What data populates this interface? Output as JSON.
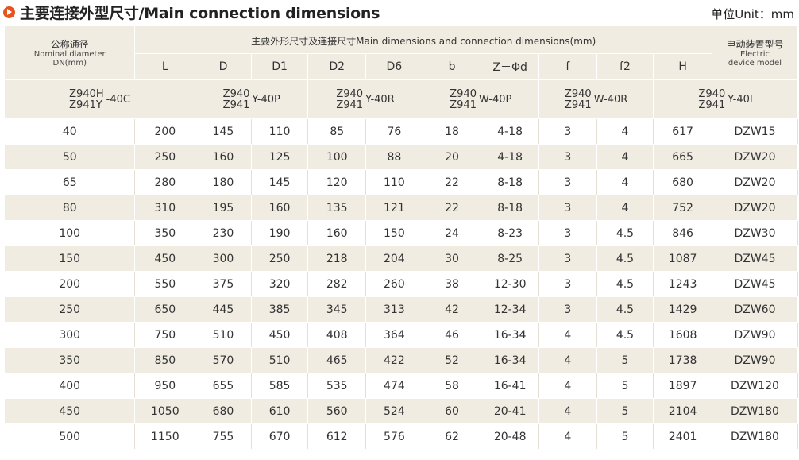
{
  "header": {
    "title": "主要连接外型尺寸/Main connection dimensions",
    "unit": "单位Unit：mm"
  },
  "table": {
    "nominal_zh": "公称通径",
    "nominal_en1": "Nominal diameter",
    "nominal_en2": "DN(mm)",
    "main_dims": "主要外形尺寸及连接尺寸Main dimensions and connection dimensions(mm)",
    "electric_zh": "电动装置型号",
    "electric_en1": "Electric",
    "electric_en2": "device model",
    "columns": [
      "L",
      "D",
      "D1",
      "D2",
      "D6",
      "b",
      "Z－Φd",
      "f",
      "f2",
      "H"
    ],
    "models": [
      {
        "top": "Z940H",
        "bottom": "Z941Y",
        "suffix": "-40C"
      },
      {
        "top": "Z940",
        "bottom": "Z941",
        "suffix": "Y-40P"
      },
      {
        "top": "Z940",
        "bottom": "Z941",
        "suffix": "Y-40R"
      },
      {
        "top": "Z940",
        "bottom": "Z941",
        "suffix": "W-40P"
      },
      {
        "top": "Z940",
        "bottom": "Z941",
        "suffix": "W-40R"
      },
      {
        "top": "Z940",
        "bottom": "Z941",
        "suffix": "Y-40I"
      }
    ],
    "rows": [
      [
        "40",
        "200",
        "145",
        "110",
        "85",
        "76",
        "18",
        "4-18",
        "3",
        "4",
        "617",
        "DZW15"
      ],
      [
        "50",
        "250",
        "160",
        "125",
        "100",
        "88",
        "20",
        "4-18",
        "3",
        "4",
        "665",
        "DZW20"
      ],
      [
        "65",
        "280",
        "180",
        "145",
        "120",
        "110",
        "22",
        "8-18",
        "3",
        "4",
        "680",
        "DZW20"
      ],
      [
        "80",
        "310",
        "195",
        "160",
        "135",
        "121",
        "22",
        "8-18",
        "3",
        "4",
        "752",
        "DZW20"
      ],
      [
        "100",
        "350",
        "230",
        "190",
        "160",
        "150",
        "24",
        "8-23",
        "3",
        "4.5",
        "846",
        "DZW30"
      ],
      [
        "150",
        "450",
        "300",
        "250",
        "218",
        "204",
        "30",
        "8-25",
        "3",
        "4.5",
        "1087",
        "DZW45"
      ],
      [
        "200",
        "550",
        "375",
        "320",
        "282",
        "260",
        "38",
        "12-30",
        "3",
        "4.5",
        "1243",
        "DZW45"
      ],
      [
        "250",
        "650",
        "445",
        "385",
        "345",
        "313",
        "42",
        "12-34",
        "3",
        "4.5",
        "1429",
        "DZW60"
      ],
      [
        "300",
        "750",
        "510",
        "450",
        "408",
        "364",
        "46",
        "16-34",
        "4",
        "4.5",
        "1608",
        "DZW90"
      ],
      [
        "350",
        "850",
        "570",
        "510",
        "465",
        "422",
        "52",
        "16-34",
        "4",
        "5",
        "1738",
        "DZW90"
      ],
      [
        "400",
        "950",
        "655",
        "585",
        "535",
        "474",
        "58",
        "16-41",
        "4",
        "5",
        "1897",
        "DZW120"
      ],
      [
        "450",
        "1050",
        "680",
        "610",
        "560",
        "524",
        "60",
        "20-41",
        "4",
        "5",
        "2104",
        "DZW180"
      ],
      [
        "500",
        "1150",
        "755",
        "670",
        "612",
        "576",
        "62",
        "20-48",
        "4",
        "5",
        "2401",
        "DZW180"
      ]
    ]
  }
}
